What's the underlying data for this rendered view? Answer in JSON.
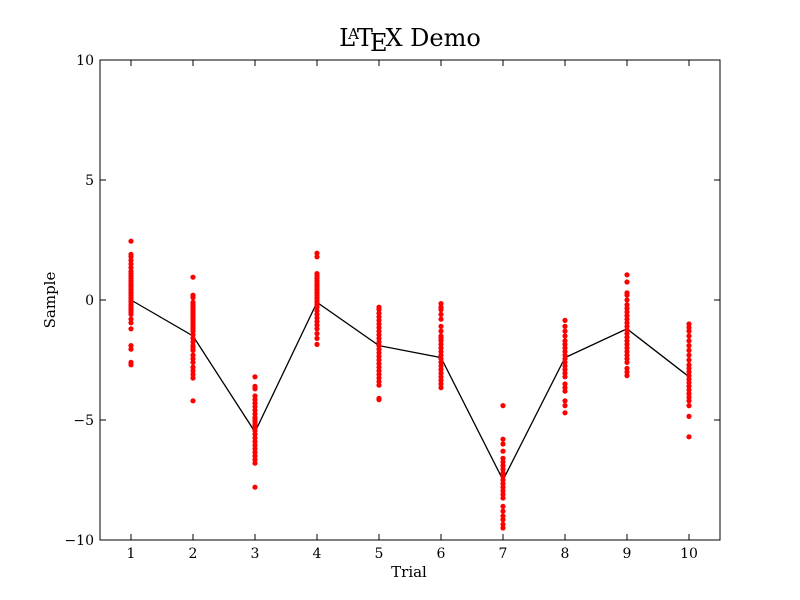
{
  "chart_data": {
    "type": "scatter",
    "title_parts": {
      "la": "L",
      "a": "A",
      "t": "T",
      "e": "E",
      "rest": "X Demo"
    },
    "xlabel": "Trial",
    "ylabel": "Sample",
    "xlim": [
      0.5,
      10.5
    ],
    "ylim": [
      -10,
      10
    ],
    "xticks": [
      1,
      2,
      3,
      4,
      5,
      6,
      7,
      8,
      9,
      10
    ],
    "yticks": [
      {
        "value": -10,
        "label": "−10"
      },
      {
        "value": -5,
        "label": "−5"
      },
      {
        "value": 0,
        "label": "0"
      },
      {
        "value": 5,
        "label": "5"
      },
      {
        "value": 10,
        "label": "10"
      }
    ],
    "grid": false,
    "colors": {
      "points": "#ff0000",
      "line": "#000000"
    },
    "series": [
      {
        "kind": "scatter",
        "points": [
          {
            "x": 1,
            "y": [
              2.45,
              1.9,
              1.8,
              1.65,
              1.5,
              1.35,
              1.2,
              1.1,
              1.0,
              0.9,
              0.8,
              0.7,
              0.6,
              0.5,
              0.4,
              0.3,
              0.2,
              0.1,
              0.0,
              -0.1,
              -0.2,
              -0.3,
              -0.4,
              -0.5,
              -0.6,
              -0.8,
              -0.95,
              -1.2,
              -1.9,
              -2.05,
              -2.6,
              -2.7
            ]
          },
          {
            "x": 2,
            "y": [
              0.95,
              0.2,
              0.1,
              -0.1,
              -0.2,
              -0.3,
              -0.4,
              -0.5,
              -0.6,
              -0.7,
              -0.8,
              -0.9,
              -1.0,
              -1.1,
              -1.2,
              -1.3,
              -1.45,
              -1.6,
              -1.75,
              -1.9,
              -2.0,
              -2.1,
              -2.3,
              -2.45,
              -2.6,
              -2.8,
              -2.95,
              -3.1,
              -3.25,
              -4.2
            ]
          },
          {
            "x": 3,
            "y": [
              -3.2,
              -3.6,
              -3.7,
              -4.0,
              -4.15,
              -4.3,
              -4.45,
              -4.6,
              -4.75,
              -4.9,
              -5.0,
              -5.1,
              -5.2,
              -5.3,
              -5.45,
              -5.6,
              -5.75,
              -5.9,
              -6.05,
              -6.2,
              -6.35,
              -6.5,
              -6.65,
              -6.8,
              -7.8
            ]
          },
          {
            "x": 4,
            "y": [
              1.95,
              1.8,
              1.1,
              1.0,
              0.9,
              0.8,
              0.7,
              0.6,
              0.5,
              0.4,
              0.3,
              0.2,
              0.1,
              0.0,
              -0.1,
              -0.2,
              -0.3,
              -0.45,
              -0.6,
              -0.75,
              -0.9,
              -1.05,
              -1.2,
              -1.4,
              -1.6,
              -1.85
            ]
          },
          {
            "x": 5,
            "y": [
              -0.3,
              -0.4,
              -0.55,
              -0.7,
              -0.85,
              -1.0,
              -1.15,
              -1.3,
              -1.45,
              -1.6,
              -1.75,
              -1.9,
              -2.05,
              -2.2,
              -2.35,
              -2.5,
              -2.65,
              -2.8,
              -2.95,
              -3.1,
              -3.25,
              -3.4,
              -3.55,
              -4.1,
              -4.15
            ]
          },
          {
            "x": 6,
            "y": [
              -0.15,
              -0.3,
              -0.4,
              -0.6,
              -0.8,
              -1.1,
              -1.3,
              -1.5,
              -1.6,
              -1.7,
              -1.85,
              -2.0,
              -2.15,
              -2.3,
              -2.45,
              -2.6,
              -2.75,
              -2.9,
              -3.05,
              -3.2,
              -3.35,
              -3.5,
              -3.65
            ]
          },
          {
            "x": 7,
            "y": [
              -4.4,
              -5.8,
              -6.0,
              -6.3,
              -6.6,
              -6.75,
              -6.9,
              -7.05,
              -7.2,
              -7.35,
              -7.5,
              -7.65,
              -7.8,
              -7.95,
              -8.1,
              -8.25,
              -8.6,
              -8.8,
              -9.0,
              -9.15,
              -9.35,
              -9.5
            ]
          },
          {
            "x": 8,
            "y": [
              -0.85,
              -1.1,
              -1.3,
              -1.5,
              -1.7,
              -1.85,
              -2.0,
              -2.15,
              -2.3,
              -2.45,
              -2.6,
              -2.75,
              -2.9,
              -3.05,
              -3.2,
              -3.5,
              -3.65,
              -3.8,
              -4.2,
              -4.4,
              -4.7
            ]
          },
          {
            "x": 9,
            "y": [
              1.05,
              0.75,
              0.3,
              0.2,
              0.0,
              -0.2,
              -0.35,
              -0.5,
              -0.65,
              -0.8,
              -0.95,
              -1.1,
              -1.25,
              -1.4,
              -1.55,
              -1.7,
              -1.85,
              -2.0,
              -2.15,
              -2.3,
              -2.45,
              -2.6,
              -2.85,
              -3.0,
              -3.15
            ]
          },
          {
            "x": 10,
            "y": [
              -1.0,
              -1.15,
              -1.3,
              -1.5,
              -1.7,
              -1.9,
              -2.1,
              -2.3,
              -2.5,
              -2.7,
              -2.85,
              -3.0,
              -3.15,
              -3.3,
              -3.45,
              -3.6,
              -3.75,
              -3.9,
              -4.05,
              -4.2,
              -4.4,
              -4.85,
              -5.7
            ]
          }
        ]
      },
      {
        "kind": "line",
        "x": [
          1,
          2,
          3,
          4,
          5,
          6,
          7,
          8,
          9,
          10
        ],
        "y": [
          0.0,
          -1.5,
          -5.5,
          -0.1,
          -1.9,
          -2.4,
          -7.5,
          -2.4,
          -1.2,
          -3.2
        ]
      }
    ]
  }
}
